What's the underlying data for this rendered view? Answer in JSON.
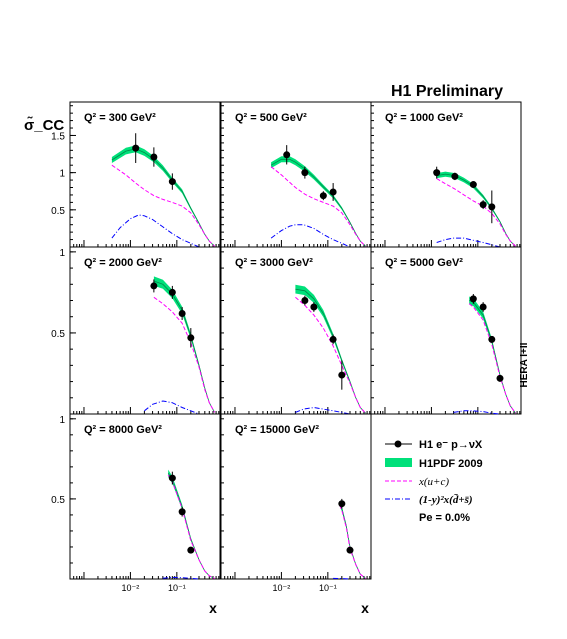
{
  "chart_data": {
    "type": "line",
    "title": "H1 Preliminary",
    "ylabel": "σ̃_CC",
    "xlabel": "x",
    "side_label": "HERA I+II",
    "x_scale": "log",
    "xlim": [
      0.0005,
      0.85
    ],
    "x_tick_labels": [
      "10⁻²",
      "10⁻¹"
    ],
    "pe_label": "Pe = 0.0%",
    "legend": {
      "data": "H1 e⁻ p→νX",
      "band": "H1PDF 2009",
      "uc": "x(u+c)",
      "dbar": "(1-y)²x(d̄+s̄)"
    },
    "colors": {
      "band": "#00e07a",
      "uc": "#ff00ff",
      "dbar": "#0000ff",
      "data": "#000000"
    },
    "panels": [
      {
        "q2_label": "Q² = 300 GeV²",
        "ylim": [
          0,
          1.95
        ],
        "yticks": [
          "0.5",
          "1",
          "1.5"
        ],
        "ytick_values": [
          0.5,
          1,
          1.5
        ],
        "data": [
          {
            "x": 0.013,
            "y": 1.33,
            "err": 0.2
          },
          {
            "x": 0.032,
            "y": 1.21,
            "err": 0.13
          },
          {
            "x": 0.08,
            "y": 0.88,
            "err": 0.11
          }
        ],
        "theory": {
          "x": [
            0.004,
            0.008,
            0.013,
            0.02,
            0.032,
            0.05,
            0.08,
            0.13,
            0.2,
            0.3,
            0.4,
            0.5,
            0.65
          ],
          "y": [
            1.17,
            1.29,
            1.32,
            1.27,
            1.18,
            1.06,
            0.9,
            0.75,
            0.52,
            0.32,
            0.17,
            0.08,
            0.01
          ]
        },
        "uc": {
          "x": [
            0.004,
            0.008,
            0.013,
            0.02,
            0.032,
            0.05,
            0.08,
            0.13,
            0.2,
            0.3,
            0.4,
            0.5,
            0.65
          ],
          "y": [
            1.1,
            0.97,
            0.86,
            0.77,
            0.69,
            0.64,
            0.6,
            0.55,
            0.46,
            0.3,
            0.17,
            0.08,
            0.01
          ]
        },
        "dbar": {
          "x": [
            0.004,
            0.006,
            0.01,
            0.015,
            0.02,
            0.03,
            0.05,
            0.08,
            0.13,
            0.2,
            0.3
          ],
          "y": [
            0.12,
            0.26,
            0.38,
            0.43,
            0.42,
            0.37,
            0.27,
            0.18,
            0.1,
            0.05,
            0.0
          ]
        }
      },
      {
        "q2_label": "Q² = 500 GeV²",
        "ylim": [
          0,
          1.95
        ],
        "yticks": [],
        "ytick_values": [],
        "data": [
          {
            "x": 0.013,
            "y": 1.24,
            "err": 0.13
          },
          {
            "x": 0.032,
            "y": 1.0,
            "err": 0.08
          },
          {
            "x": 0.08,
            "y": 0.69,
            "err": 0.06
          },
          {
            "x": 0.13,
            "y": 0.74,
            "err": 0.12
          }
        ],
        "theory": {
          "x": [
            0.006,
            0.01,
            0.015,
            0.02,
            0.032,
            0.05,
            0.08,
            0.13,
            0.2,
            0.3,
            0.4,
            0.5,
            0.65
          ],
          "y": [
            1.1,
            1.18,
            1.18,
            1.14,
            1.05,
            0.94,
            0.81,
            0.68,
            0.52,
            0.33,
            0.18,
            0.08,
            0.01
          ]
        },
        "uc": {
          "x": [
            0.006,
            0.01,
            0.015,
            0.02,
            0.032,
            0.05,
            0.08,
            0.13,
            0.2,
            0.3,
            0.4,
            0.5,
            0.65
          ],
          "y": [
            1.08,
            0.97,
            0.87,
            0.8,
            0.71,
            0.65,
            0.6,
            0.55,
            0.46,
            0.3,
            0.17,
            0.08,
            0.01
          ]
        },
        "dbar": {
          "x": [
            0.006,
            0.01,
            0.015,
            0.02,
            0.03,
            0.05,
            0.08,
            0.13,
            0.2,
            0.3
          ],
          "y": [
            0.12,
            0.22,
            0.28,
            0.3,
            0.3,
            0.25,
            0.17,
            0.1,
            0.05,
            0.0
          ]
        }
      },
      {
        "q2_label": "Q² = 1000 GeV²",
        "ylim": [
          0,
          1.95
        ],
        "yticks": [],
        "ytick_values": [],
        "data": [
          {
            "x": 0.013,
            "y": 1.0,
            "err": 0.08
          },
          {
            "x": 0.032,
            "y": 0.95,
            "err": 0.05
          },
          {
            "x": 0.08,
            "y": 0.84,
            "err": 0.04
          },
          {
            "x": 0.13,
            "y": 0.57,
            "err": 0.06
          },
          {
            "x": 0.2,
            "y": 0.54,
            "err": 0.22
          }
        ],
        "theory": {
          "x": [
            0.013,
            0.02,
            0.032,
            0.05,
            0.08,
            0.13,
            0.2,
            0.3,
            0.4,
            0.5,
            0.65
          ],
          "y": [
            0.96,
            0.98,
            0.96,
            0.9,
            0.82,
            0.68,
            0.52,
            0.34,
            0.18,
            0.08,
            0.01
          ]
        },
        "uc": {
          "x": [
            0.013,
            0.02,
            0.032,
            0.05,
            0.08,
            0.13,
            0.2,
            0.3,
            0.4,
            0.5,
            0.65
          ],
          "y": [
            0.92,
            0.85,
            0.78,
            0.7,
            0.62,
            0.55,
            0.45,
            0.31,
            0.17,
            0.08,
            0.01
          ]
        },
        "dbar": {
          "x": [
            0.013,
            0.02,
            0.03,
            0.05,
            0.08,
            0.13,
            0.2,
            0.3
          ],
          "y": [
            0.06,
            0.1,
            0.12,
            0.12,
            0.09,
            0.06,
            0.03,
            0.0
          ]
        }
      },
      {
        "q2_label": "Q² = 2000 GeV²",
        "ylim": [
          0,
          1.03
        ],
        "yticks": [
          "0.5",
          "1"
        ],
        "ytick_values": [
          0.5,
          1
        ],
        "data": [
          {
            "x": 0.032,
            "y": 0.79,
            "err": 0.04
          },
          {
            "x": 0.08,
            "y": 0.75,
            "err": 0.04
          },
          {
            "x": 0.13,
            "y": 0.62,
            "err": 0.04
          },
          {
            "x": 0.2,
            "y": 0.47,
            "err": 0.06
          }
        ],
        "theory": {
          "x": [
            0.032,
            0.05,
            0.08,
            0.13,
            0.2,
            0.3,
            0.4,
            0.5,
            0.65
          ],
          "y": [
            0.82,
            0.8,
            0.74,
            0.64,
            0.48,
            0.3,
            0.16,
            0.07,
            0.01
          ]
        },
        "uc": {
          "x": [
            0.032,
            0.05,
            0.08,
            0.13,
            0.2,
            0.3,
            0.4,
            0.5,
            0.65
          ],
          "y": [
            0.72,
            0.68,
            0.63,
            0.56,
            0.44,
            0.29,
            0.15,
            0.07,
            0.01
          ]
        },
        "dbar": {
          "x": [
            0.02,
            0.03,
            0.05,
            0.08,
            0.13,
            0.2,
            0.3
          ],
          "y": [
            0.02,
            0.06,
            0.08,
            0.07,
            0.04,
            0.02,
            0.0
          ]
        }
      },
      {
        "q2_label": "Q² = 3000 GeV²",
        "ylim": [
          0,
          1.03
        ],
        "yticks": [],
        "ytick_values": [],
        "data": [
          {
            "x": 0.032,
            "y": 0.7,
            "err": 0.03
          },
          {
            "x": 0.05,
            "y": 0.66,
            "err": 0.03
          },
          {
            "x": 0.13,
            "y": 0.46,
            "err": 0.03
          },
          {
            "x": 0.2,
            "y": 0.24,
            "err": 0.09
          }
        ],
        "theory": {
          "x": [
            0.02,
            0.032,
            0.05,
            0.08,
            0.13,
            0.2,
            0.3,
            0.4,
            0.5,
            0.65
          ],
          "y": [
            0.77,
            0.76,
            0.71,
            0.62,
            0.48,
            0.33,
            0.2,
            0.1,
            0.04,
            0.005
          ]
        },
        "uc": {
          "x": [
            0.02,
            0.032,
            0.05,
            0.08,
            0.13,
            0.2,
            0.3,
            0.4,
            0.5,
            0.65
          ],
          "y": [
            0.72,
            0.67,
            0.61,
            0.53,
            0.42,
            0.3,
            0.19,
            0.1,
            0.04,
            0.005
          ]
        },
        "dbar": {
          "x": [
            0.02,
            0.03,
            0.05,
            0.08,
            0.13,
            0.2,
            0.3
          ],
          "y": [
            0.01,
            0.03,
            0.04,
            0.03,
            0.02,
            0.01,
            0.0
          ]
        }
      },
      {
        "q2_label": "Q² = 5000 GeV²",
        "ylim": [
          0,
          1.03
        ],
        "yticks": [],
        "ytick_values": [],
        "data": [
          {
            "x": 0.08,
            "y": 0.71,
            "err": 0.03
          },
          {
            "x": 0.13,
            "y": 0.66,
            "err": 0.03
          },
          {
            "x": 0.2,
            "y": 0.46,
            "err": 0.02
          },
          {
            "x": 0.3,
            "y": 0.22,
            "err": 0.02
          }
        ],
        "theory": {
          "x": [
            0.065,
            0.08,
            0.13,
            0.2,
            0.3,
            0.4,
            0.5,
            0.65
          ],
          "y": [
            0.7,
            0.69,
            0.61,
            0.45,
            0.24,
            0.12,
            0.05,
            0.005
          ]
        },
        "uc": {
          "x": [
            0.065,
            0.08,
            0.13,
            0.2,
            0.3,
            0.4,
            0.5,
            0.65
          ],
          "y": [
            0.68,
            0.66,
            0.58,
            0.43,
            0.23,
            0.12,
            0.05,
            0.005
          ]
        },
        "dbar": {
          "x": [
            0.03,
            0.05,
            0.08,
            0.13,
            0.2,
            0.3
          ],
          "y": [
            0.01,
            0.02,
            0.02,
            0.015,
            0.005,
            0.0
          ]
        }
      },
      {
        "q2_label": "Q² = 8000 GeV²",
        "ylim": [
          0,
          1.03
        ],
        "yticks": [
          "0.5",
          "1"
        ],
        "ytick_values": [
          0.5,
          1
        ],
        "data": [
          {
            "x": 0.08,
            "y": 0.63,
            "err": 0.04
          },
          {
            "x": 0.13,
            "y": 0.42,
            "err": 0.03
          },
          {
            "x": 0.2,
            "y": 0.18,
            "err": 0.02
          }
        ],
        "theory": {
          "x": [
            0.065,
            0.08,
            0.13,
            0.2,
            0.3,
            0.4,
            0.5,
            0.65
          ],
          "y": [
            0.66,
            0.62,
            0.45,
            0.25,
            0.12,
            0.05,
            0.02,
            0.003
          ]
        },
        "uc": {
          "x": [
            0.065,
            0.08,
            0.13,
            0.2,
            0.3,
            0.4,
            0.5,
            0.65
          ],
          "y": [
            0.65,
            0.61,
            0.44,
            0.24,
            0.12,
            0.05,
            0.02,
            0.003
          ]
        },
        "dbar": {
          "x": [
            0.05,
            0.08,
            0.13,
            0.2,
            0.3
          ],
          "y": [
            0.005,
            0.01,
            0.008,
            0.004,
            0.0
          ]
        }
      },
      {
        "q2_label": "Q² = 15000 GeV²",
        "ylim": [
          0,
          1.03
        ],
        "yticks": [],
        "ytick_values": [],
        "data": [
          {
            "x": 0.2,
            "y": 0.47,
            "err": 0.03
          },
          {
            "x": 0.3,
            "y": 0.18,
            "err": 0.02
          }
        ],
        "theory": {
          "x": [
            0.18,
            0.2,
            0.25,
            0.3,
            0.4,
            0.5,
            0.65
          ],
          "y": [
            0.47,
            0.44,
            0.33,
            0.2,
            0.09,
            0.03,
            0.003
          ]
        },
        "uc": {
          "x": [
            0.18,
            0.2,
            0.25,
            0.3,
            0.4,
            0.5,
            0.65
          ],
          "y": [
            0.46,
            0.43,
            0.32,
            0.19,
            0.09,
            0.03,
            0.003
          ]
        },
        "dbar": {
          "x": [
            0.13,
            0.2,
            0.3
          ],
          "y": [
            0.004,
            0.003,
            0.0
          ]
        }
      }
    ]
  }
}
